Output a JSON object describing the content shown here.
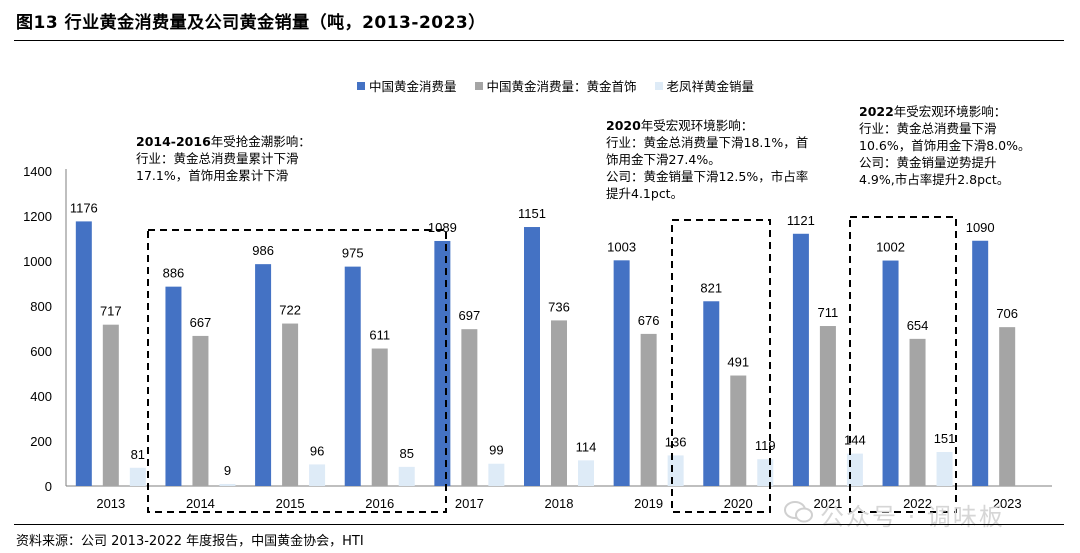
{
  "title": "图13 行业黄金消费量及公司黄金销量（吨，2013-2023）",
  "source": "资料来源：公司 2013-2022 年度报告，中国黄金协会，HTI",
  "watermark": "公众号 · 调味板",
  "colors": {
    "total": "#4472C4",
    "jewelry": "#A5A5A5",
    "company": "#DEEBF7",
    "box": "#000000"
  },
  "annotations": [
    {
      "head": "2014-2016",
      "text": "年受抢金潮影响：\n行业：黄金总消费量累计下滑\n17.1%，首饰用金累计下滑"
    },
    {
      "head": "2020",
      "text": "年受宏观环境影响：\n行业：黄金总消费量下滑18.1%，首\n饰用金下滑27.4%。\n公司：黄金销量下滑12.5%，市占率\n提升4.1pct。"
    },
    {
      "head": "2022",
      "text": "年受宏观环境影响：\n行业：黄金总消费量下滑\n10.6%，首饰用金下滑8.0%。\n公司：黄金销量逆势提升\n4.9%,市占率提升2.8pct。"
    }
  ],
  "chart_data": {
    "type": "bar",
    "categories": [
      "2013",
      "2014",
      "2015",
      "2016",
      "2017",
      "2018",
      "2019",
      "2020",
      "2021",
      "2022",
      "2023"
    ],
    "series": [
      {
        "name": "中国黄金消费量",
        "values": [
          1176,
          886,
          986,
          975,
          1089,
          1151,
          1003,
          821,
          1121,
          1002,
          1090
        ]
      },
      {
        "name": "中国黄金消费量：黄金首饰",
        "values": [
          717,
          667,
          722,
          611,
          697,
          736,
          676,
          491,
          711,
          654,
          706
        ]
      },
      {
        "name": "老凤祥黄金销量",
        "values": [
          81,
          9,
          96,
          85,
          99,
          114,
          136,
          119,
          144,
          151,
          null
        ]
      }
    ],
    "ylim": [
      0,
      1400
    ],
    "yticks": [
      0,
      200,
      400,
      600,
      800,
      1000,
      1200,
      1400
    ],
    "grid": false,
    "legend": "top",
    "highlights": [
      {
        "from": "2014",
        "to": "2016"
      },
      {
        "from": "2020",
        "to": "2020"
      },
      {
        "from": "2022",
        "to": "2022"
      }
    ]
  }
}
